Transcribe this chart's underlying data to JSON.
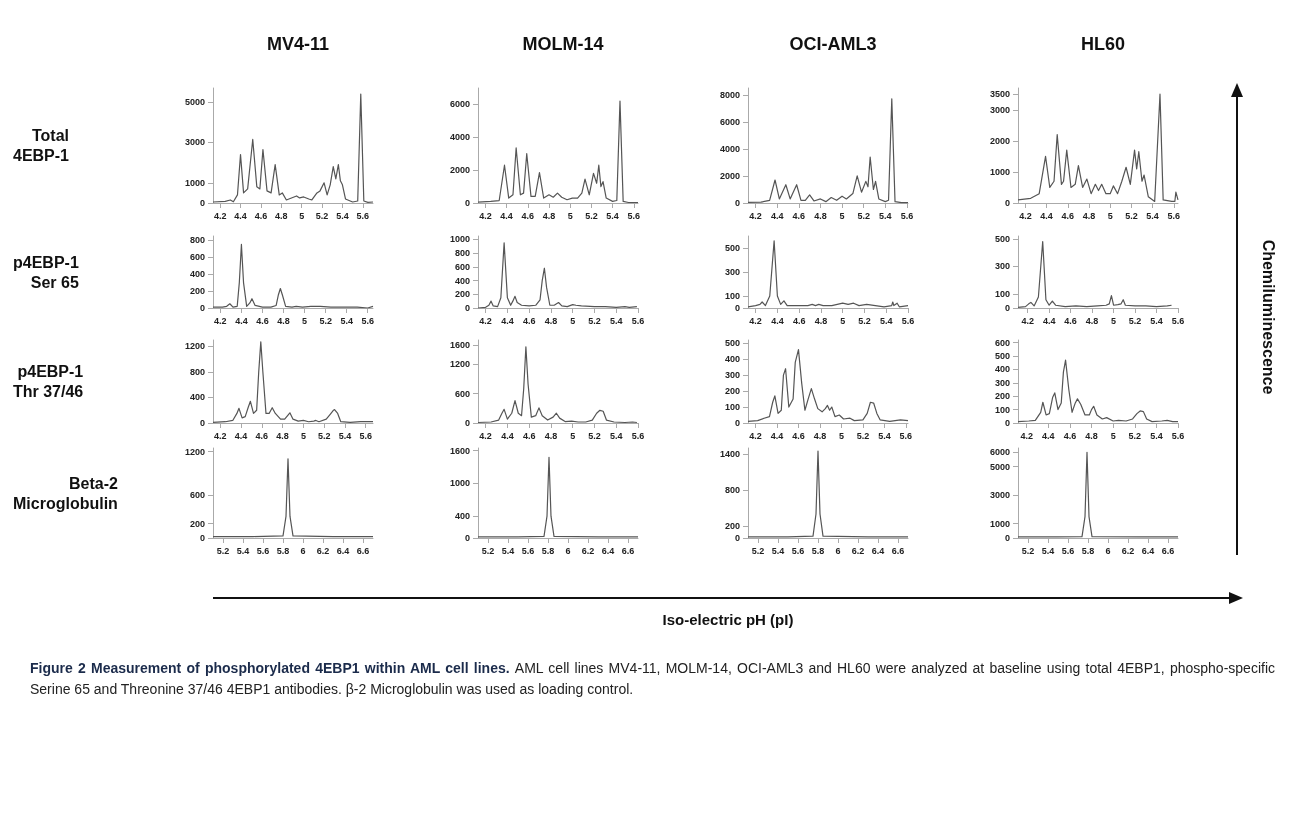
{
  "chart_data": [
    {
      "type": "line",
      "title": "MV4-11",
      "ylabel": "Total 4EBP-1",
      "color": "#555555",
      "xlim": [
        4.13,
        5.7
      ],
      "xticks": [
        4.2,
        4.4,
        4.6,
        4.8,
        5,
        5.2,
        5.4,
        5.6
      ],
      "ylim": [
        0,
        5700
      ],
      "yticks": [
        0,
        1000,
        3000,
        5000
      ],
      "x": [
        4.13,
        4.25,
        4.3,
        4.33,
        4.37,
        4.4,
        4.43,
        4.47,
        4.52,
        4.56,
        4.59,
        4.62,
        4.66,
        4.7,
        4.74,
        4.78,
        4.81,
        4.85,
        4.9,
        4.95,
        4.98,
        5.02,
        5.07,
        5.1,
        5.15,
        5.18,
        5.22,
        5.25,
        5.28,
        5.31,
        5.335,
        5.36,
        5.38,
        5.4,
        5.43,
        5.5,
        5.55,
        5.58,
        5.61,
        5.65,
        5.7
      ],
      "values": [
        50,
        80,
        150,
        60,
        400,
        2400,
        500,
        700,
        3150,
        800,
        700,
        2650,
        600,
        500,
        1900,
        400,
        500,
        150,
        250,
        350,
        250,
        300,
        200,
        150,
        500,
        600,
        1000,
        400,
        900,
        1800,
        1200,
        1900,
        1100,
        900,
        200,
        50,
        100,
        5400,
        100,
        30,
        50
      ]
    },
    {
      "type": "line",
      "title": "MOLM-14",
      "color": "#555555",
      "xlim": [
        4.13,
        5.64
      ],
      "xticks": [
        4.2,
        4.4,
        4.6,
        4.8,
        5,
        5.2,
        5.4,
        5.6
      ],
      "ylim": [
        0,
        7000
      ],
      "yticks": [
        0,
        2000,
        4000,
        6000
      ],
      "x": [
        4.13,
        4.25,
        4.33,
        4.38,
        4.42,
        4.46,
        4.49,
        4.53,
        4.56,
        4.59,
        4.63,
        4.67,
        4.71,
        4.75,
        4.8,
        4.84,
        4.88,
        4.92,
        4.97,
        5.02,
        5.07,
        5.11,
        5.14,
        5.18,
        5.22,
        5.25,
        5.27,
        5.29,
        5.31,
        5.34,
        5.4,
        5.44,
        5.47,
        5.5,
        5.55,
        5.64
      ],
      "values": [
        50,
        100,
        150,
        2300,
        300,
        500,
        3350,
        500,
        600,
        3000,
        400,
        400,
        1850,
        300,
        500,
        350,
        600,
        350,
        200,
        300,
        300,
        600,
        1450,
        500,
        1800,
        1200,
        2300,
        1000,
        1300,
        300,
        100,
        150,
        6200,
        100,
        30,
        30
      ]
    },
    {
      "type": "line",
      "title": "OCI-AML3",
      "color": "#555555",
      "xlim": [
        4.13,
        5.61
      ],
      "xticks": [
        4.2,
        4.4,
        4.6,
        4.8,
        5,
        5.2,
        5.4,
        5.6
      ],
      "ylim": [
        0,
        8500
      ],
      "yticks": [
        0,
        2000,
        4000,
        6000,
        8000
      ],
      "x": [
        4.13,
        4.25,
        4.33,
        4.38,
        4.42,
        4.48,
        4.52,
        4.58,
        4.62,
        4.66,
        4.7,
        4.74,
        4.8,
        4.85,
        4.9,
        4.95,
        5,
        5.04,
        5.1,
        5.14,
        5.18,
        5.22,
        5.24,
        5.26,
        5.29,
        5.31,
        5.34,
        5.4,
        5.43,
        5.46,
        5.49,
        5.55,
        5.61
      ],
      "values": [
        50,
        60,
        200,
        1700,
        300,
        1350,
        300,
        1350,
        200,
        200,
        600,
        150,
        300,
        100,
        400,
        200,
        500,
        300,
        700,
        2000,
        800,
        1600,
        1200,
        3400,
        1000,
        1600,
        300,
        100,
        200,
        7700,
        100,
        30,
        30
      ]
    },
    {
      "type": "line",
      "title": "HL60",
      "color": "#555555",
      "xlim": [
        4.13,
        5.64
      ],
      "xticks": [
        4.2,
        4.4,
        4.6,
        4.8,
        5,
        5.2,
        5.4,
        5.6
      ],
      "ylim": [
        0,
        3700
      ],
      "yticks": [
        0,
        1000,
        2000,
        3000,
        3500
      ],
      "x": [
        4.13,
        4.25,
        4.33,
        4.39,
        4.43,
        4.47,
        4.5,
        4.54,
        4.56,
        4.59,
        4.63,
        4.67,
        4.7,
        4.74,
        4.78,
        4.82,
        4.86,
        4.89,
        4.92,
        4.96,
        5,
        5.03,
        5.07,
        5.11,
        5.15,
        5.19,
        5.23,
        5.25,
        5.27,
        5.3,
        5.32,
        5.36,
        5.42,
        5.47,
        5.5,
        5.58,
        5.61,
        5.62,
        5.64
      ],
      "values": [
        100,
        150,
        300,
        1500,
        500,
        700,
        2200,
        600,
        700,
        1700,
        500,
        600,
        1200,
        500,
        770,
        300,
        600,
        400,
        600,
        300,
        300,
        550,
        300,
        700,
        1150,
        600,
        1700,
        1100,
        1650,
        700,
        900,
        200,
        50,
        3500,
        100,
        50,
        50,
        350,
        100
      ]
    },
    {
      "type": "line",
      "ylabel": "p4EBP-1 Ser 65",
      "color": "#555555",
      "xlim": [
        4.13,
        5.65
      ],
      "xticks": [
        4.2,
        4.4,
        4.6,
        4.8,
        5,
        5.2,
        5.4,
        5.6
      ],
      "ylim": [
        0,
        850
      ],
      "yticks": [
        0,
        200,
        400,
        600,
        800
      ],
      "x": [
        4.13,
        4.22,
        4.26,
        4.29,
        4.32,
        4.36,
        4.38,
        4.4,
        4.42,
        4.45,
        4.48,
        4.5,
        4.53,
        4.6,
        4.68,
        4.73,
        4.75,
        4.77,
        4.79,
        4.82,
        4.88,
        4.92,
        4.98,
        5.06,
        5.1,
        5.15,
        5.25,
        5.35,
        5.45,
        5.5,
        5.6,
        5.65
      ],
      "values": [
        10,
        10,
        20,
        50,
        10,
        20,
        300,
        750,
        300,
        20,
        60,
        110,
        30,
        10,
        10,
        30,
        150,
        230,
        150,
        20,
        10,
        20,
        10,
        20,
        20,
        20,
        10,
        10,
        10,
        10,
        0,
        20
      ]
    },
    {
      "type": "line",
      "color": "#555555",
      "xlim": [
        4.13,
        5.6
      ],
      "xticks": [
        4.2,
        4.4,
        4.6,
        4.8,
        5,
        5.2,
        5.4,
        5.6
      ],
      "ylim": [
        0,
        1050
      ],
      "yticks": [
        0,
        200,
        400,
        600,
        800,
        1000
      ],
      "x": [
        4.13,
        4.2,
        4.23,
        4.25,
        4.27,
        4.31,
        4.34,
        4.37,
        4.4,
        4.43,
        4.45,
        4.47,
        4.49,
        4.53,
        4.6,
        4.66,
        4.7,
        4.72,
        4.74,
        4.76,
        4.79,
        4.83,
        4.87,
        4.9,
        4.95,
        5,
        5.03,
        5.08,
        5.2,
        5.3,
        5.4,
        5.48,
        5.52,
        5.59
      ],
      "values": [
        0,
        10,
        40,
        100,
        30,
        20,
        150,
        950,
        150,
        40,
        100,
        170,
        80,
        40,
        30,
        40,
        120,
        400,
        580,
        300,
        40,
        40,
        80,
        30,
        20,
        50,
        40,
        30,
        20,
        20,
        10,
        20,
        10,
        20
      ]
    },
    {
      "type": "line",
      "color": "#555555",
      "xlim": [
        4.13,
        5.6
      ],
      "xticks": [
        4.2,
        4.4,
        4.6,
        4.8,
        5,
        5.2,
        5.4,
        5.6
      ],
      "ylim": [
        0,
        600
      ],
      "yticks": [
        0,
        100,
        300,
        500
      ],
      "x": [
        4.13,
        4.2,
        4.24,
        4.26,
        4.29,
        4.33,
        4.37,
        4.4,
        4.43,
        4.46,
        4.49,
        4.55,
        4.62,
        4.68,
        4.72,
        4.75,
        4.78,
        4.82,
        4.9,
        4.95,
        5,
        5.05,
        5.1,
        5.15,
        5.22,
        5.3,
        5.38,
        5.45,
        5.46,
        5.47,
        5.5,
        5.52,
        5.6
      ],
      "values": [
        10,
        20,
        30,
        50,
        20,
        100,
        560,
        100,
        30,
        60,
        20,
        20,
        20,
        20,
        30,
        20,
        30,
        20,
        20,
        30,
        40,
        30,
        40,
        20,
        30,
        20,
        10,
        20,
        50,
        20,
        40,
        10,
        20
      ]
    },
    {
      "type": "line",
      "color": "#555555",
      "xlim": [
        4.11,
        5.6
      ],
      "xticks": [
        4.2,
        4.4,
        4.6,
        4.8,
        5,
        5.2,
        5.4,
        5.6
      ],
      "ylim": [
        0,
        520
      ],
      "yticks": [
        0,
        100,
        300,
        500
      ],
      "x": [
        4.11,
        4.18,
        4.21,
        4.23,
        4.26,
        4.3,
        4.34,
        4.37,
        4.4,
        4.43,
        4.46,
        4.55,
        4.65,
        4.75,
        4.85,
        4.93,
        4.96,
        4.98,
        5,
        5.04,
        5.07,
        5.09,
        5.11,
        5.2,
        5.3,
        5.4,
        5.5,
        5.54
      ],
      "values": [
        5,
        10,
        30,
        40,
        15,
        80,
        480,
        60,
        20,
        50,
        20,
        10,
        15,
        10,
        15,
        20,
        30,
        90,
        20,
        25,
        30,
        60,
        20,
        15,
        15,
        10,
        15,
        20
      ]
    },
    {
      "type": "line",
      "ylabel": "p4EBP-1 Thr 37/46",
      "color": "#555555",
      "xlim": [
        4.13,
        5.67
      ],
      "xticks": [
        4.2,
        4.4,
        4.6,
        4.8,
        5,
        5.2,
        5.4,
        5.6
      ],
      "ylim": [
        0,
        1300
      ],
      "yticks": [
        0,
        400,
        800,
        1200
      ],
      "x": [
        4.13,
        4.25,
        4.32,
        4.36,
        4.38,
        4.41,
        4.44,
        4.47,
        4.49,
        4.52,
        4.55,
        4.57,
        4.59,
        4.61,
        4.64,
        4.67,
        4.7,
        4.73,
        4.78,
        4.82,
        4.85,
        4.87,
        4.9,
        4.95,
        5,
        5.05,
        5.1,
        5.12,
        5.15,
        5.22,
        5.26,
        5.29,
        5.3,
        5.33,
        5.36,
        5.45,
        5.55,
        5.67
      ],
      "values": [
        10,
        20,
        40,
        150,
        230,
        80,
        100,
        250,
        340,
        150,
        200,
        800,
        1270,
        800,
        150,
        150,
        240,
        150,
        60,
        60,
        120,
        160,
        60,
        30,
        40,
        20,
        30,
        40,
        20,
        60,
        140,
        200,
        210,
        150,
        20,
        10,
        20,
        20
      ]
    },
    {
      "type": "line",
      "color": "#555555",
      "xlim": [
        4.13,
        5.6
      ],
      "xticks": [
        4.2,
        4.4,
        4.6,
        4.8,
        5,
        5.2,
        5.4,
        5.6
      ],
      "ylim": [
        0,
        1700
      ],
      "yticks": [
        0,
        600,
        1200,
        1600
      ],
      "x": [
        4.13,
        4.25,
        4.32,
        4.35,
        4.37,
        4.4,
        4.44,
        4.47,
        4.5,
        4.53,
        4.55,
        4.57,
        4.59,
        4.62,
        4.66,
        4.69,
        4.72,
        4.77,
        4.82,
        4.85,
        4.88,
        4.93,
        4.99,
        5.05,
        5.12,
        5.18,
        5.22,
        5.25,
        5.28,
        5.31,
        5.38,
        5.48,
        5.55,
        5.59
      ],
      "values": [
        10,
        20,
        60,
        200,
        280,
        80,
        200,
        460,
        200,
        150,
        700,
        1560,
        800,
        120,
        150,
        310,
        150,
        60,
        120,
        200,
        100,
        30,
        40,
        20,
        20,
        60,
        200,
        260,
        240,
        60,
        20,
        10,
        20,
        10
      ]
    },
    {
      "type": "line",
      "color": "#555555",
      "xlim": [
        4.13,
        5.62
      ],
      "xticks": [
        4.2,
        4.4,
        4.6,
        4.8,
        5,
        5.2,
        5.4,
        5.6
      ],
      "ylim": [
        0,
        520
      ],
      "yticks": [
        0,
        100,
        200,
        300,
        400,
        500
      ],
      "x": [
        4.13,
        4.22,
        4.28,
        4.33,
        4.36,
        4.38,
        4.41,
        4.44,
        4.46,
        4.48,
        4.51,
        4.55,
        4.57,
        4.6,
        4.63,
        4.66,
        4.69,
        4.72,
        4.75,
        4.78,
        4.82,
        4.85,
        4.87,
        4.89,
        4.91,
        4.94,
        4.98,
        5.02,
        5.08,
        5.12,
        5.2,
        5.24,
        5.27,
        5.3,
        5.33,
        5.36,
        5.45,
        5.55,
        5.62
      ],
      "values": [
        10,
        15,
        30,
        40,
        130,
        170,
        60,
        80,
        300,
        340,
        100,
        150,
        380,
        460,
        250,
        80,
        150,
        215,
        150,
        90,
        70,
        90,
        110,
        80,
        100,
        40,
        50,
        25,
        30,
        15,
        20,
        60,
        130,
        125,
        60,
        20,
        10,
        20,
        15
      ]
    },
    {
      "type": "line",
      "color": "#555555",
      "xlim": [
        4.12,
        5.6
      ],
      "xticks": [
        4.2,
        4.4,
        4.6,
        4.8,
        5,
        5.2,
        5.4,
        5.6
      ],
      "ylim": [
        0,
        620
      ],
      "yticks": [
        0,
        100,
        200,
        300,
        400,
        500,
        600
      ],
      "x": [
        4.12,
        4.22,
        4.28,
        4.33,
        4.35,
        4.38,
        4.41,
        4.44,
        4.46,
        4.49,
        4.52,
        4.54,
        4.56,
        4.59,
        4.62,
        4.65,
        4.67,
        4.7,
        4.74,
        4.78,
        4.8,
        4.82,
        4.85,
        4.9,
        4.94,
        5,
        5.05,
        5.12,
        5.18,
        5.22,
        5.25,
        5.28,
        5.31,
        5.36,
        5.45,
        5.5,
        5.55,
        5.6
      ],
      "values": [
        10,
        15,
        20,
        80,
        155,
        60,
        70,
        190,
        225,
        100,
        150,
        380,
        470,
        250,
        80,
        150,
        180,
        140,
        60,
        60,
        100,
        125,
        60,
        30,
        40,
        15,
        20,
        15,
        30,
        70,
        90,
        85,
        30,
        10,
        15,
        20,
        10,
        10
      ]
    },
    {
      "type": "line",
      "ylabel": "Beta-2 Microglobulin",
      "color": "#555555",
      "xlim": [
        5.1,
        6.7
      ],
      "xticks": [
        5.2,
        5.4,
        5.6,
        5.8,
        6,
        6.2,
        6.4,
        6.6
      ],
      "ylim": [
        0,
        1250
      ],
      "yticks": [
        0,
        200,
        600,
        1200
      ],
      "x": [
        5.1,
        5.5,
        5.8,
        5.83,
        5.85,
        5.87,
        5.9,
        6.3,
        6.7
      ],
      "values": [
        20,
        20,
        30,
        300,
        1100,
        300,
        30,
        20,
        20
      ]
    },
    {
      "type": "line",
      "color": "#555555",
      "xlim": [
        5.1,
        6.7
      ],
      "xticks": [
        5.2,
        5.4,
        5.6,
        5.8,
        6,
        6.2,
        6.4,
        6.6
      ],
      "ylim": [
        0,
        1650
      ],
      "yticks": [
        0,
        400,
        1000,
        1600
      ],
      "x": [
        5.1,
        5.5,
        5.76,
        5.79,
        5.81,
        5.83,
        5.86,
        6.3,
        6.7
      ],
      "values": [
        20,
        20,
        30,
        400,
        1480,
        400,
        30,
        20,
        20
      ]
    },
    {
      "type": "line",
      "color": "#555555",
      "xlim": [
        5.1,
        6.7
      ],
      "xticks": [
        5.2,
        5.4,
        5.6,
        5.8,
        6,
        6.2,
        6.4,
        6.6
      ],
      "ylim": [
        0,
        1500
      ],
      "yticks": [
        0,
        200,
        800,
        1400
      ],
      "x": [
        5.1,
        5.5,
        5.75,
        5.78,
        5.8,
        5.82,
        5.85,
        6.3,
        6.7
      ],
      "values": [
        20,
        20,
        30,
        400,
        1450,
        400,
        30,
        20,
        20
      ]
    },
    {
      "type": "line",
      "color": "#555555",
      "xlim": [
        5.1,
        6.7
      ],
      "xticks": [
        5.2,
        5.4,
        5.6,
        5.8,
        6,
        6.2,
        6.4,
        6.6
      ],
      "ylim": [
        0,
        6300
      ],
      "yticks": [
        0,
        1000,
        3000,
        5000,
        6000
      ],
      "x": [
        5.1,
        5.5,
        5.74,
        5.77,
        5.79,
        5.81,
        5.84,
        6.3,
        6.7
      ],
      "values": [
        80,
        80,
        100,
        1500,
        6000,
        1500,
        100,
        80,
        80
      ]
    },
    {
      "type": "other",
      "xlabel": "Iso-electric pH (pI)",
      "ylabel": "Chemiluminescence",
      "title": "Figure 2 Measurement of phosphorylated 4EBP1 within AML cell lines.",
      "annotations": [
        "AML cell lines MV4-11, MOLM-14, OCI-AML3 and HL60 were analyzed at baseline using total 4EBP1, phospho-specific Serine 65 and Threonine 37/46 4EBP1 antibodies. β-2 Microglobulin was used as loading control."
      ]
    }
  ]
}
